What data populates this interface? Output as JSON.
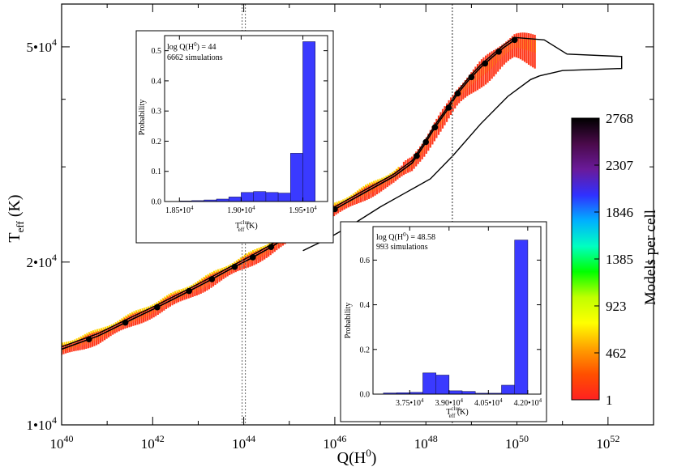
{
  "chart_data": [
    {
      "name": "main",
      "type": "scatter",
      "title": "",
      "xlabel": "Q(H0)",
      "ylabel": "Teff (K)",
      "x_scale": "log",
      "y_scale": "log",
      "xlim_log10": [
        40,
        53
      ],
      "ylim": [
        10000,
        60000
      ],
      "x_ticks": [
        {
          "exp": 40,
          "label": "40"
        },
        {
          "exp": 42,
          "label": "42"
        },
        {
          "exp": 44,
          "label": "44"
        },
        {
          "exp": 46,
          "label": "46"
        },
        {
          "exp": 48,
          "label": "48"
        },
        {
          "exp": 50,
          "label": "50"
        },
        {
          "exp": 52,
          "label": "52"
        }
      ],
      "y_ticks": [
        {
          "value": 10000,
          "label": "1•10",
          "exp": "4"
        },
        {
          "value": 20000,
          "label": "2•10",
          "exp": "4"
        },
        {
          "value": 50000,
          "label": "5•10",
          "exp": "4"
        }
      ],
      "vlines_log10": [
        44,
        48.58
      ],
      "colorbar": {
        "label": "Models per cell",
        "ticks": [
          2768,
          2307,
          1846,
          1385,
          923,
          462,
          1
        ],
        "colors": [
          "#000000",
          "#4a0a4a",
          "#6a1a9a",
          "#3030ff",
          "#00b0ff",
          "#00ffc0",
          "#00ff00",
          "#c0ff00",
          "#ffff00",
          "#ffa000",
          "#ff5000",
          "#ff2020"
        ]
      },
      "track_points": [
        {
          "x": 40.0,
          "y": 13800
        },
        {
          "x": 40.8,
          "y": 14600
        },
        {
          "x": 41.5,
          "y": 15600
        },
        {
          "x": 42.1,
          "y": 16500
        },
        {
          "x": 42.7,
          "y": 17500
        },
        {
          "x": 43.2,
          "y": 18400
        },
        {
          "x": 43.7,
          "y": 19400
        },
        {
          "x": 44.15,
          "y": 20300
        },
        {
          "x": 44.55,
          "y": 21200
        },
        {
          "x": 44.9,
          "y": 22100
        },
        {
          "x": 45.15,
          "y": 22700
        },
        {
          "x": 45.4,
          "y": 23300
        },
        {
          "x": 45.6,
          "y": 23900
        },
        {
          "x": 45.8,
          "y": 24500
        },
        {
          "x": 46.2,
          "y": 25600
        },
        {
          "x": 46.8,
          "y": 27300
        },
        {
          "x": 47.3,
          "y": 28800
        },
        {
          "x": 47.7,
          "y": 30500
        },
        {
          "x": 47.95,
          "y": 32800
        },
        {
          "x": 48.2,
          "y": 35500
        },
        {
          "x": 48.45,
          "y": 38000
        },
        {
          "x": 48.7,
          "y": 41000
        },
        {
          "x": 48.95,
          "y": 43500
        },
        {
          "x": 49.2,
          "y": 45800
        },
        {
          "x": 49.45,
          "y": 47800
        },
        {
          "x": 49.7,
          "y": 49800
        },
        {
          "x": 49.95,
          "y": 51500
        }
      ],
      "track_markers": [
        40.6,
        41.4,
        42.1,
        42.8,
        43.3,
        43.8,
        44.2,
        44.6,
        45.0,
        45.3,
        45.6,
        45.8,
        46.0,
        47.8,
        48.0,
        48.2,
        48.5,
        48.7,
        49.0,
        49.3,
        49.6,
        49.95
      ]
    },
    {
      "name": "inset_left",
      "type": "bar",
      "annotation_1": "log Q(H0) = 44",
      "annotation_2": "6662 simulations",
      "ylabel": "Probability",
      "xlabel": "Teff clus (K)",
      "ylim": [
        0,
        0.55
      ],
      "xlim": [
        18380,
        19700
      ],
      "bin_edges": [
        18500,
        18600,
        18700,
        18800,
        18900,
        19000,
        19100,
        19200,
        19300,
        19400,
        19500,
        19600
      ],
      "values": [
        0.002,
        0.003,
        0.005,
        0.008,
        0.015,
        0.03,
        0.033,
        0.03,
        0.028,
        0.16,
        0.53
      ],
      "y_ticks": [
        "0.0",
        "0.1",
        "0.2",
        "0.3",
        "0.4",
        "0.5"
      ],
      "x_ticks": [
        {
          "value": 18500,
          "label": "1.85•10",
          "exp": "4"
        },
        {
          "value": 19000,
          "label": "1.90•10",
          "exp": "4"
        },
        {
          "value": 19500,
          "label": "1.95•10",
          "exp": "4"
        }
      ]
    },
    {
      "name": "inset_right",
      "type": "bar",
      "annotation_1": "log Q(H0) = 48.58",
      "annotation_2": "993 simulations",
      "ylabel": "Probability",
      "xlabel": "Teff clus (K)",
      "ylim": [
        0,
        0.75
      ],
      "xlim": [
        36100,
        42500
      ],
      "bin_edges": [
        36500,
        37000,
        37500,
        38000,
        38500,
        39000,
        39500,
        40000,
        40500,
        41000,
        41500,
        42000
      ],
      "values": [
        0.005,
        0.006,
        0.008,
        0.095,
        0.085,
        0.015,
        0.012,
        0.004,
        0.004,
        0.04,
        0.69
      ],
      "y_ticks": [
        "0.0",
        "0.2",
        "0.4",
        "0.6"
      ],
      "x_ticks": [
        {
          "value": 37500,
          "label": "3.75•10",
          "exp": "4"
        },
        {
          "value": 39000,
          "label": "3.90•10",
          "exp": "4"
        },
        {
          "value": 40500,
          "label": "4.05•10",
          "exp": "4"
        },
        {
          "value": 42000,
          "label": "4.20•10",
          "exp": "4"
        }
      ]
    }
  ],
  "labels": {
    "x_base": "10",
    "x_main": "Q(H",
    "x_sup": "0",
    "x_close": ")",
    "y_main": "T",
    "y_sub": "eff",
    "y_unit": " (K)",
    "ins_ann_pre": "log Q(H",
    "ins_ann_sup": "0",
    "ins_left_ann_post": ") = 44",
    "ins_right_ann_post": ") = 48.58",
    "ins_xlab_T": "T",
    "ins_xlab_sup": "clus",
    "ins_xlab_sub": "eff",
    "ins_xlab_unit": " (K)"
  }
}
